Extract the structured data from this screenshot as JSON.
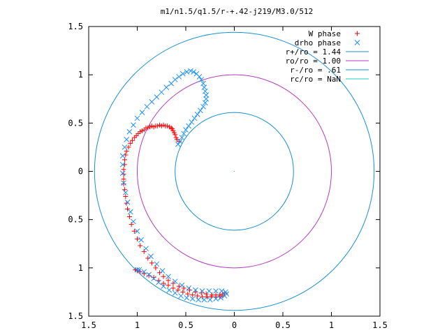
{
  "chart_data": {
    "type": "scatter",
    "title": "m1/n1.5/q1.5/r-+.42-j219/M3.0/512",
    "xlabel": "",
    "ylabel": "",
    "xlim": [
      -1.5,
      1.5
    ],
    "ylim": [
      -1.5,
      1.5
    ],
    "x_ticks": [
      {
        "value": -1.5,
        "label": "1.5"
      },
      {
        "value": -1.0,
        "label": "1"
      },
      {
        "value": -0.5,
        "label": "0.5"
      },
      {
        "value": 0,
        "label": "0"
      },
      {
        "value": 0.5,
        "label": "0.5"
      },
      {
        "value": 1.0,
        "label": "1"
      },
      {
        "value": 1.5,
        "label": "1.5"
      }
    ],
    "y_ticks": [
      {
        "value": 1.5,
        "label": "1.5"
      },
      {
        "value": 1.0,
        "label": "1"
      },
      {
        "value": 0.5,
        "label": "0.5"
      },
      {
        "value": 0,
        "label": "0"
      },
      {
        "value": -0.5,
        "label": "0.5"
      },
      {
        "value": -1.0,
        "label": "1"
      },
      {
        "value": -1.5,
        "label": "1.5"
      }
    ],
    "grid": false,
    "legend_position": "top-right",
    "circles": [
      {
        "name": "r+/ro = 1.44",
        "radius": 1.44,
        "color": "#1a8fd0"
      },
      {
        "name": "ro/ro = 1.00",
        "radius": 1.0,
        "color": "#b33bbf"
      },
      {
        "name": "r-/ro = .61",
        "radius": 0.61,
        "color": "#1a8fd0"
      },
      {
        "name": "rc/ro = NaN",
        "radius": null,
        "color": "#1fc9c9"
      }
    ],
    "series": [
      {
        "name": "W phase",
        "marker": "+",
        "color": "#ff0000",
        "points": [
          [
            -0.57,
            0.31
          ],
          [
            -0.59,
            0.33
          ],
          [
            -0.6,
            0.35
          ],
          [
            -0.61,
            0.38
          ],
          [
            -0.62,
            0.4
          ],
          [
            -0.63,
            0.42
          ],
          [
            -0.64,
            0.44
          ],
          [
            -0.65,
            0.45
          ],
          [
            -0.67,
            0.46
          ],
          [
            -0.69,
            0.47
          ],
          [
            -0.71,
            0.47
          ],
          [
            -0.73,
            0.48
          ],
          [
            -0.75,
            0.47
          ],
          [
            -0.77,
            0.48
          ],
          [
            -0.79,
            0.47
          ],
          [
            -0.81,
            0.47
          ],
          [
            -0.83,
            0.46
          ],
          [
            -0.85,
            0.47
          ],
          [
            -0.87,
            0.46
          ],
          [
            -0.89,
            0.45
          ],
          [
            -0.91,
            0.45
          ],
          [
            -0.93,
            0.43
          ],
          [
            -0.95,
            0.42
          ],
          [
            -0.97,
            0.41
          ],
          [
            -0.99,
            0.39
          ],
          [
            -1.01,
            0.37
          ],
          [
            -1.03,
            0.35
          ],
          [
            -1.05,
            0.32
          ],
          [
            -1.07,
            0.29
          ],
          [
            -1.09,
            0.25
          ],
          [
            -1.11,
            0.21
          ],
          [
            -1.12,
            0.17
          ],
          [
            -1.13,
            0.12
          ],
          [
            -1.13,
            0.07
          ],
          [
            -1.14,
            0.02
          ],
          [
            -1.14,
            -0.03
          ],
          [
            -1.14,
            -0.08
          ],
          [
            -1.14,
            -0.13
          ],
          [
            -1.13,
            -0.19
          ],
          [
            -1.12,
            -0.26
          ],
          [
            -1.11,
            -0.33
          ],
          [
            -1.1,
            -0.39
          ],
          [
            -1.08,
            -0.47
          ],
          [
            -1.06,
            -0.55
          ],
          [
            -1.03,
            -0.62
          ],
          [
            -1.0,
            -0.7
          ],
          [
            -0.97,
            -0.77
          ],
          [
            -0.93,
            -0.83
          ],
          [
            -0.89,
            -0.9
          ],
          [
            -0.85,
            -0.95
          ],
          [
            -0.81,
            -1.0
          ],
          [
            -0.77,
            -1.05
          ],
          [
            -0.73,
            -1.09
          ],
          [
            -0.68,
            -1.13
          ],
          [
            -0.63,
            -1.16
          ],
          [
            -0.57,
            -1.19
          ],
          [
            -0.52,
            -1.21
          ],
          [
            -0.46,
            -1.23
          ],
          [
            -0.4,
            -1.25
          ],
          [
            -0.34,
            -1.26
          ],
          [
            -0.29,
            -1.27
          ],
          [
            -0.23,
            -1.28
          ],
          [
            -0.19,
            -1.28
          ],
          [
            -0.15,
            -1.28
          ],
          [
            -0.12,
            -1.27
          ],
          [
            -0.1,
            -1.26
          ],
          [
            -0.12,
            -1.29
          ],
          [
            -0.15,
            -1.3
          ],
          [
            -0.19,
            -1.3
          ],
          [
            -0.24,
            -1.3
          ],
          [
            -0.28,
            -1.3
          ],
          [
            -0.33,
            -1.3
          ],
          [
            -0.38,
            -1.29
          ],
          [
            -0.43,
            -1.28
          ],
          [
            -0.48,
            -1.27
          ],
          [
            -0.53,
            -1.25
          ],
          [
            -0.58,
            -1.23
          ],
          [
            -0.63,
            -1.21
          ],
          [
            -0.68,
            -1.18
          ],
          [
            -0.73,
            -1.16
          ],
          [
            -0.78,
            -1.13
          ],
          [
            -0.83,
            -1.1
          ],
          [
            -0.88,
            -1.08
          ],
          [
            -0.93,
            -1.06
          ],
          [
            -0.97,
            -1.04
          ],
          [
            -1.0,
            -1.03
          ],
          [
            -1.02,
            -1.02
          ]
        ]
      },
      {
        "name": "drho phase",
        "marker": "x",
        "color": "#1a8fff",
        "points": [
          [
            -0.58,
            0.28
          ],
          [
            -0.56,
            0.31
          ],
          [
            -0.54,
            0.35
          ],
          [
            -0.52,
            0.39
          ],
          [
            -0.5,
            0.43
          ],
          [
            -0.47,
            0.47
          ],
          [
            -0.44,
            0.51
          ],
          [
            -0.41,
            0.55
          ],
          [
            -0.38,
            0.59
          ],
          [
            -0.35,
            0.63
          ],
          [
            -0.32,
            0.67
          ],
          [
            -0.3,
            0.71
          ],
          [
            -0.29,
            0.75
          ],
          [
            -0.29,
            0.79
          ],
          [
            -0.3,
            0.83
          ],
          [
            -0.31,
            0.87
          ],
          [
            -0.32,
            0.91
          ],
          [
            -0.34,
            0.95
          ],
          [
            -0.36,
            0.98
          ],
          [
            -0.39,
            1.01
          ],
          [
            -0.42,
            1.03
          ],
          [
            -0.45,
            1.04
          ],
          [
            -0.49,
            1.03
          ],
          [
            -0.53,
            1.01
          ],
          [
            -0.57,
            0.98
          ],
          [
            -0.61,
            0.95
          ],
          [
            -0.65,
            0.91
          ],
          [
            -0.7,
            0.87
          ],
          [
            -0.75,
            0.82
          ],
          [
            -0.8,
            0.77
          ],
          [
            -0.85,
            0.72
          ],
          [
            -0.9,
            0.67
          ],
          [
            -0.95,
            0.61
          ],
          [
            -1.0,
            0.55
          ],
          [
            -1.04,
            0.48
          ],
          [
            -1.08,
            0.41
          ],
          [
            -1.11,
            0.33
          ],
          [
            -1.13,
            0.25
          ],
          [
            -1.15,
            0.16
          ],
          [
            -1.15,
            0.07
          ],
          [
            -1.15,
            -0.02
          ],
          [
            -1.14,
            -0.12
          ],
          [
            -1.12,
            -0.22
          ],
          [
            -1.1,
            -0.32
          ],
          [
            -1.07,
            -0.42
          ],
          [
            -1.04,
            -0.52
          ],
          [
            -1.0,
            -0.62
          ],
          [
            -0.96,
            -0.71
          ],
          [
            -0.91,
            -0.8
          ],
          [
            -0.86,
            -0.88
          ],
          [
            -0.8,
            -0.96
          ],
          [
            -0.74,
            -1.03
          ],
          [
            -0.68,
            -1.09
          ],
          [
            -0.61,
            -1.14
          ],
          [
            -0.54,
            -1.18
          ],
          [
            -0.47,
            -1.21
          ],
          [
            -0.4,
            -1.23
          ],
          [
            -0.33,
            -1.24
          ],
          [
            -0.26,
            -1.24
          ],
          [
            -0.19,
            -1.24
          ],
          [
            -0.13,
            -1.24
          ],
          [
            -0.09,
            -1.25
          ],
          [
            -0.08,
            -1.27
          ],
          [
            -0.1,
            -1.29
          ],
          [
            -0.14,
            -1.31
          ],
          [
            -0.19,
            -1.32
          ],
          [
            -0.25,
            -1.33
          ],
          [
            -0.31,
            -1.33
          ],
          [
            -0.37,
            -1.33
          ],
          [
            -0.43,
            -1.32
          ],
          [
            -0.49,
            -1.31
          ],
          [
            -0.55,
            -1.29
          ],
          [
            -0.61,
            -1.26
          ],
          [
            -0.67,
            -1.23
          ],
          [
            -0.73,
            -1.19
          ],
          [
            -0.78,
            -1.15
          ],
          [
            -0.83,
            -1.11
          ],
          [
            -0.88,
            -1.07
          ],
          [
            -0.93,
            -1.04
          ],
          [
            -0.98,
            -1.02
          ],
          [
            -1.0,
            -1.02
          ]
        ]
      }
    ],
    "extra_marks": [
      {
        "x": 0.0,
        "y": 0.0,
        "color": "#1fc9c9"
      }
    ]
  }
}
